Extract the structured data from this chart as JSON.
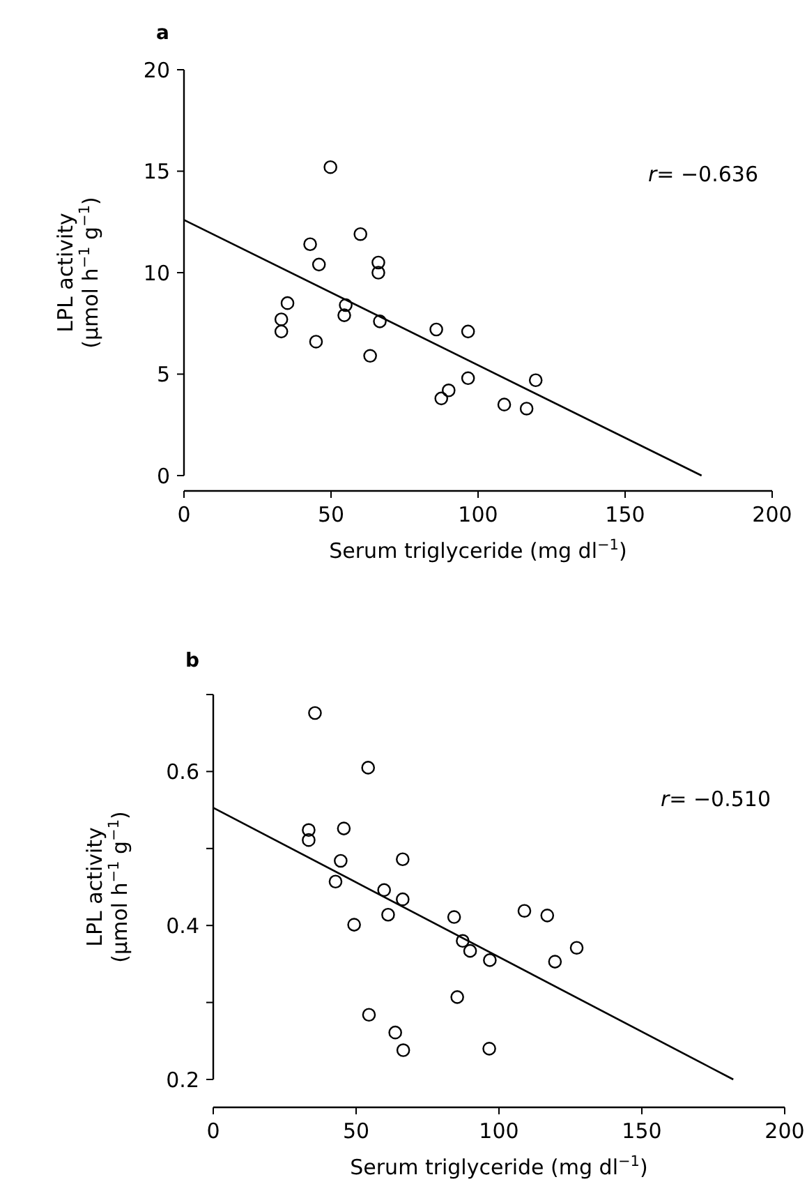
{
  "chart_data": [
    {
      "type": "scatter",
      "title": "a",
      "xlabel": "Serum triglyceride (mg dl$^{−1}$)",
      "ylabel": "LPL activity\n(µmol h$^{−1}$ g$^{−1}$)",
      "xlim": [
        0,
        200
      ],
      "xticks": [
        0,
        50,
        100,
        150,
        200
      ],
      "ylim": [
        0,
        20
      ],
      "yticks": [
        0,
        5,
        10,
        15,
        20
      ],
      "grid": false,
      "annotations": [
        "r= −0.636"
      ],
      "series": [
        {
          "marker": "circle",
          "color": "#000000",
          "x": [
            49.8,
            60,
            42.9,
            45.9,
            66.1,
            66.1,
            35.2,
            33.1,
            33.1,
            55,
            54.5,
            66.6,
            44.9,
            63.3,
            85.8,
            96.6,
            96.6,
            90,
            87.5,
            108.9,
            116.5,
            119.6
          ],
          "values": [
            15.2,
            11.9,
            11.4,
            10.4,
            10.5,
            10,
            8.5,
            7.7,
            7.1,
            8.4,
            7.9,
            7.6,
            6.6,
            5.9,
            7.2,
            7.1,
            4.8,
            4.2,
            3.8,
            3.5,
            3.3,
            4.7
          ]
        },
        {
          "type": "line",
          "color": "#000000",
          "x": [
            0,
            176
          ],
          "values": [
            12.6,
            0
          ]
        }
      ]
    },
    {
      "type": "scatter",
      "title": "b",
      "xlabel": "Serum triglyceride (mg dl$^{−1}$)",
      "ylabel": "LPL activity\n(µmol h$^{−1}$ g$^{−1}$)",
      "xlim": [
        0,
        200
      ],
      "xticks": [
        0,
        50,
        100,
        150,
        200
      ],
      "ylim": [
        0.2,
        0.7
      ],
      "yticks": [
        0.2,
        {
          "value": 0.3,
          "label": null
        },
        0.4,
        {
          "value": 0.5,
          "label": null
        },
        0.6,
        {
          "value": 0.7,
          "label": null
        }
      ],
      "grid": false,
      "annotations": [
        "r= −0.510"
      ],
      "series": [
        {
          "marker": "circle",
          "color": "#000000",
          "x": [
            35.6,
            54.2,
            33.4,
            33.4,
            45.7,
            44.6,
            66.3,
            42.8,
            59.8,
            66.3,
            108.9,
            49.3,
            61.2,
            84.3,
            116.9,
            87.3,
            89.9,
            96.8,
            119.6,
            127.2,
            85.4,
            54.5,
            63.7,
            66.5,
            96.6
          ],
          "values": [
            0.676,
            0.605,
            0.524,
            0.511,
            0.526,
            0.484,
            0.486,
            0.457,
            0.446,
            0.434,
            0.419,
            0.401,
            0.414,
            0.411,
            0.413,
            0.38,
            0.367,
            0.355,
            0.353,
            0.371,
            0.307,
            0.284,
            0.261,
            0.238,
            0.24
          ]
        },
        {
          "type": "line",
          "color": "#000000",
          "x": [
            0,
            182
          ],
          "values": [
            0.553,
            0.2
          ]
        }
      ]
    }
  ]
}
